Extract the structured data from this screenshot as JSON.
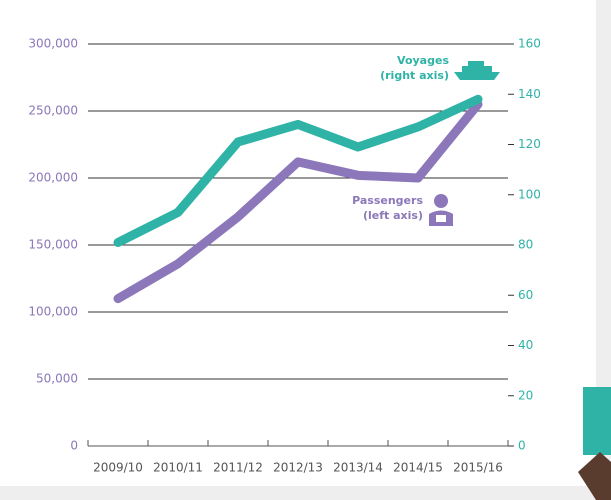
{
  "chart_data": {
    "type": "line",
    "categories": [
      "2009/10",
      "2010/11",
      "2011/12",
      "2012/13",
      "2013/14",
      "2014/15",
      "2015/16"
    ],
    "series": [
      {
        "name": "Passengers",
        "color": "#8b77b9",
        "values": [
          110000,
          136000,
          171000,
          212000,
          202000,
          200000,
          255000
        ]
      },
      {
        "name": "Voyages",
        "color": "#2fb3a6",
        "axis": "y2",
        "values": [
          81,
          93,
          121,
          128,
          119,
          127,
          138
        ]
      }
    ],
    "annotations": [
      "Voyages",
      "(right axis)",
      "Passengers",
      "(left axis)"
    ],
    "ylim": [
      0,
      300000
    ],
    "yticks": [
      0,
      {
        "value": 50000,
        "label": "50,000"
      },
      {
        "value": 100000,
        "label": "100,000"
      },
      {
        "value": 150000,
        "label": "150,000"
      },
      {
        "value": 200000,
        "label": "200,000"
      },
      {
        "value": 250000,
        "label": "250,000"
      },
      {
        "value": 300000,
        "label": "300,000"
      }
    ],
    "y2lim": [
      0,
      160
    ],
    "y2ticks": [
      0,
      20,
      40,
      60,
      80,
      100,
      120,
      140,
      160
    ],
    "grid": true
  }
}
